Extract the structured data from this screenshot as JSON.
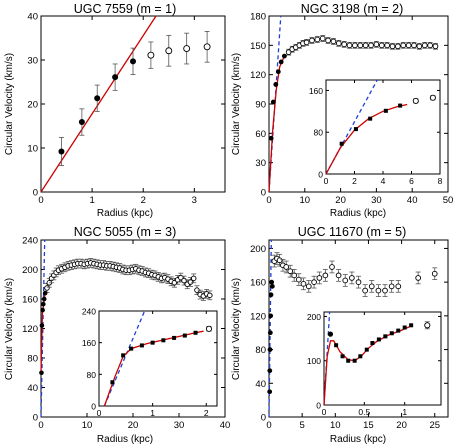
{
  "chart_data": [
    {
      "type": "scatter",
      "title": "UGC 7559 (m = 1)",
      "xlabel": "Radius (kpc)",
      "ylabel": "Circular Velocity (km/s)",
      "xlim": [
        0,
        3.6
      ],
      "ylim": [
        0,
        40
      ],
      "xticks": [
        0,
        1,
        2,
        3
      ],
      "yticks": [
        0,
        10,
        20,
        30,
        40
      ],
      "filled": [
        {
          "x": 0.4,
          "y": 9.2,
          "err": 3.2
        },
        {
          "x": 0.8,
          "y": 15.9,
          "err": 3.0
        },
        {
          "x": 1.1,
          "y": 21.3,
          "err": 3.0
        },
        {
          "x": 1.45,
          "y": 26.1,
          "err": 3.0
        },
        {
          "x": 1.8,
          "y": 29.7,
          "err": 3.0
        }
      ],
      "open": [
        {
          "x": 2.15,
          "y": 31.1,
          "err": 3.0
        },
        {
          "x": 2.5,
          "y": 32.1,
          "err": 3.5
        },
        {
          "x": 2.85,
          "y": 32.6,
          "err": 3.5
        },
        {
          "x": 3.25,
          "y": 33.0,
          "err": 3.5
        }
      ],
      "model_line": [
        [
          0,
          0
        ],
        [
          2.25,
          40
        ]
      ]
    },
    {
      "type": "scatter",
      "title": "NGC 3198 (m = 2)",
      "xlabel": "Radius (kpc)",
      "ylabel": "Circular Velocity (km/s)",
      "xlim": [
        0,
        50
      ],
      "ylim": [
        0,
        180
      ],
      "xticks": [
        0,
        10,
        20,
        30,
        40,
        50
      ],
      "yticks": [
        0,
        30,
        60,
        90,
        120,
        150,
        180
      ],
      "filled": [
        {
          "x": 0.6,
          "y": 55
        },
        {
          "x": 1.2,
          "y": 92
        },
        {
          "x": 1.9,
          "y": 110
        },
        {
          "x": 2.6,
          "y": 123
        },
        {
          "x": 3.4,
          "y": 133
        },
        {
          "x": 4.3,
          "y": 139
        }
      ],
      "open_x": [
        5.5,
        6.5,
        7.5,
        8.5,
        9.5,
        10.5,
        12,
        13.5,
        15,
        16.5,
        18,
        19.5,
        21,
        22.5,
        24,
        25.5,
        27,
        28.5,
        30,
        31.5,
        33,
        34.5,
        36,
        37.5,
        39,
        40.5,
        42,
        43.5,
        45,
        46.5
      ],
      "open_y": [
        143,
        146,
        148,
        150,
        152,
        153,
        155,
        156,
        157,
        155,
        154,
        152,
        151,
        150,
        150,
        150,
        150,
        150,
        151,
        150,
        150,
        149,
        149,
        150,
        150,
        150,
        149,
        150,
        150,
        149
      ],
      "inset": {
        "xlim": [
          0,
          8
        ],
        "ylim": [
          0,
          180
        ],
        "xticks": [
          0,
          2,
          4,
          6,
          8
        ],
        "yticks": [
          0,
          80,
          160
        ],
        "filled": [
          {
            "x": 1.1,
            "y": 58
          },
          {
            "x": 2.1,
            "y": 86
          },
          {
            "x": 3.1,
            "y": 106
          },
          {
            "x": 4.2,
            "y": 121
          },
          {
            "x": 5.2,
            "y": 131
          }
        ],
        "open": [
          {
            "x": 6.3,
            "y": 140
          },
          {
            "x": 7.5,
            "y": 146
          }
        ]
      }
    },
    {
      "type": "scatter",
      "title": "NGC 5055 (m = 3)",
      "xlabel": "Radius (kpc)",
      "ylabel": "Circular Velocity (km/s)",
      "xlim": [
        0,
        40
      ],
      "ylim": [
        0,
        240
      ],
      "xticks": [
        0,
        10,
        20,
        30,
        40
      ],
      "yticks": [
        0,
        40,
        80,
        120,
        160,
        200,
        240
      ],
      "filled": [
        {
          "x": 0.1,
          "y": 60
        },
        {
          "x": 0.2,
          "y": 124
        },
        {
          "x": 0.35,
          "y": 145
        },
        {
          "x": 0.5,
          "y": 153
        },
        {
          "x": 0.7,
          "y": 160
        },
        {
          "x": 0.9,
          "y": 168
        }
      ],
      "open_x": [
        1.3,
        1.8,
        2.3,
        2.8,
        3.3,
        3.8,
        4.5,
        5.2,
        5.9,
        6.6,
        7.3,
        8,
        8.7,
        9.4,
        10.1,
        10.8,
        11.5,
        12.2,
        12.9,
        13.6,
        14.3,
        15,
        15.7,
        16.4,
        17.1,
        17.8,
        18.5,
        19.2,
        19.9,
        20.6,
        21.3,
        22,
        22.7,
        23.4,
        24.1,
        24.8,
        25.5,
        26.2,
        26.9,
        27.6,
        28.3,
        29,
        29.7,
        30.4,
        31.1,
        31.8,
        32.5,
        33.2,
        33.9,
        34.6,
        35.3,
        36,
        36.7
      ],
      "open_y": [
        175,
        182,
        188,
        192,
        196,
        199,
        201,
        203,
        205,
        206,
        207,
        208,
        208,
        207,
        208,
        209,
        208,
        207,
        206,
        206,
        205,
        205,
        204,
        203,
        202,
        200,
        199,
        199,
        200,
        201,
        199,
        198,
        196,
        195,
        193,
        192,
        190,
        188,
        189,
        187,
        184,
        182,
        186,
        189,
        185,
        180,
        183,
        188,
        172,
        166,
        164,
        167,
        165
      ],
      "inset": {
        "xlim": [
          0,
          2.2
        ],
        "ylim": [
          0,
          240
        ],
        "xticks": [
          0,
          1,
          2
        ],
        "yticks": [
          0,
          80,
          160,
          240
        ],
        "filled": [
          {
            "x": 0.25,
            "y": 60
          },
          {
            "x": 0.45,
            "y": 128
          },
          {
            "x": 0.6,
            "y": 145
          },
          {
            "x": 0.8,
            "y": 153
          },
          {
            "x": 1.0,
            "y": 160
          },
          {
            "x": 1.2,
            "y": 166
          },
          {
            "x": 1.4,
            "y": 172
          },
          {
            "x": 1.6,
            "y": 178
          },
          {
            "x": 1.8,
            "y": 185
          }
        ],
        "open": [
          {
            "x": 2.05,
            "y": 195
          }
        ]
      }
    },
    {
      "type": "scatter",
      "title": "UGC 11670 (m = 5)",
      "xlabel": "Radius (kpc)",
      "ylabel": "Circular Velocity (km/s)",
      "xlim": [
        0,
        27
      ],
      "ylim": [
        0,
        210
      ],
      "xticks": [
        0,
        5,
        10,
        15,
        20,
        25
      ],
      "yticks": [
        0,
        40,
        80,
        120,
        160,
        200
      ],
      "filled": [
        {
          "x": 0.1,
          "y": 30
        },
        {
          "x": 0.12,
          "y": 55
        },
        {
          "x": 0.15,
          "y": 80
        },
        {
          "x": 0.2,
          "y": 100
        },
        {
          "x": 0.25,
          "y": 120
        },
        {
          "x": 0.3,
          "y": 145
        },
        {
          "x": 0.4,
          "y": 160
        },
        {
          "x": 0.5,
          "y": 155
        }
      ],
      "open_x": [
        0.8,
        1.2,
        1.6,
        2.1,
        2.6,
        3.2,
        3.8,
        4.5,
        5.2,
        6.0,
        6.8,
        7.6,
        8.5,
        9.5,
        10.5,
        11.5,
        12.5,
        13.5,
        14.5,
        15.5,
        16.5,
        17.5,
        18.5,
        19.5,
        22.5,
        25
      ],
      "open_y": [
        185,
        188,
        186,
        180,
        178,
        173,
        168,
        163,
        158,
        155,
        160,
        165,
        168,
        178,
        168,
        162,
        165,
        160,
        150,
        155,
        150,
        150,
        155,
        155,
        165,
        170
      ],
      "inset": {
        "xlim": [
          0,
          1.45
        ],
        "ylim": [
          0,
          210
        ],
        "xticks": [
          0,
          0.5,
          1
        ],
        "yticks": [
          0,
          100,
          200
        ],
        "filled": [
          {
            "x": 0.08,
            "y": 160
          },
          {
            "x": 0.15,
            "y": 135
          },
          {
            "x": 0.23,
            "y": 110
          },
          {
            "x": 0.3,
            "y": 100
          },
          {
            "x": 0.38,
            "y": 100
          },
          {
            "x": 0.45,
            "y": 110
          },
          {
            "x": 0.53,
            "y": 125
          },
          {
            "x": 0.6,
            "y": 140
          },
          {
            "x": 0.68,
            "y": 148
          },
          {
            "x": 0.76,
            "y": 155
          },
          {
            "x": 0.84,
            "y": 162
          },
          {
            "x": 0.92,
            "y": 168
          },
          {
            "x": 1.0,
            "y": 175
          },
          {
            "x": 1.08,
            "y": 180
          }
        ],
        "open": [
          {
            "x": 1.28,
            "y": 180
          }
        ]
      }
    }
  ],
  "colors": {
    "model": "#cc0000",
    "dashed": "#1f3fd6",
    "filled": "#000000",
    "open": "#000000"
  }
}
